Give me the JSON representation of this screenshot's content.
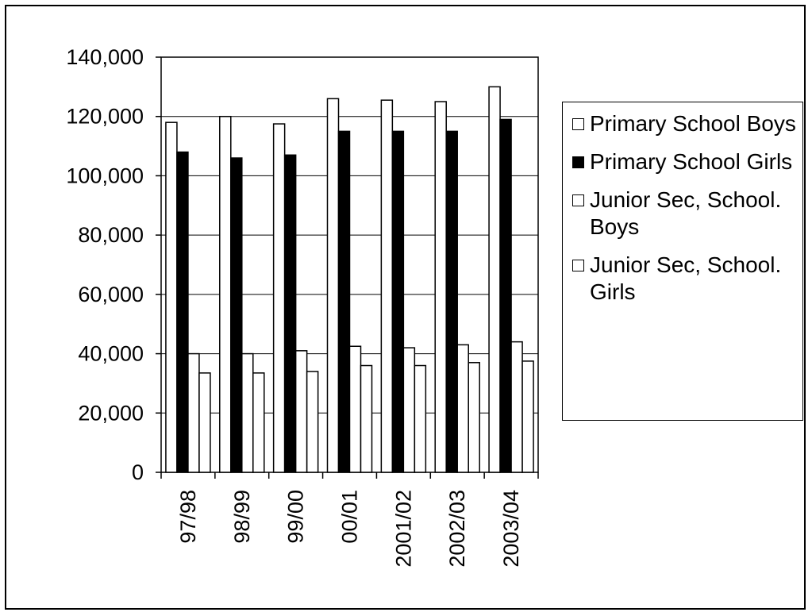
{
  "chart_data": {
    "type": "bar",
    "categories": [
      "97/98",
      "98/99",
      "99/00",
      "00/01",
      "2001/02",
      "2002/03",
      "2003/04"
    ],
    "series": [
      {
        "name": "Primary School Boys",
        "color": "#ffffff",
        "values": [
          118000,
          120000,
          117500,
          126000,
          125500,
          125000,
          130000
        ]
      },
      {
        "name": "Primary School Girls",
        "color": "#000000",
        "values": [
          108000,
          106000,
          107000,
          115000,
          115000,
          115000,
          119000
        ]
      },
      {
        "name": "Junior Sec, School. Boys",
        "color": "#ffffff",
        "values": [
          40000,
          40000,
          41000,
          42500,
          42000,
          43000,
          44000
        ]
      },
      {
        "name": "Junior Sec, School. Girls",
        "color": "#ffffff",
        "values": [
          33500,
          33500,
          34000,
          36000,
          36000,
          37000,
          37500
        ]
      }
    ],
    "ylim": [
      0,
      140000
    ],
    "yticks": [
      0,
      {
        "value": 20000,
        "label": "20,000"
      },
      {
        "value": 40000,
        "label": "40,000"
      },
      {
        "value": 60000,
        "label": "60,000"
      },
      {
        "value": 80000,
        "label": "80,000"
      },
      {
        "value": 100000,
        "label": "100,000"
      },
      {
        "value": 120000,
        "label": "120,000"
      },
      {
        "value": 140000,
        "label": "140,000"
      }
    ],
    "grid": true,
    "legend": "right"
  }
}
